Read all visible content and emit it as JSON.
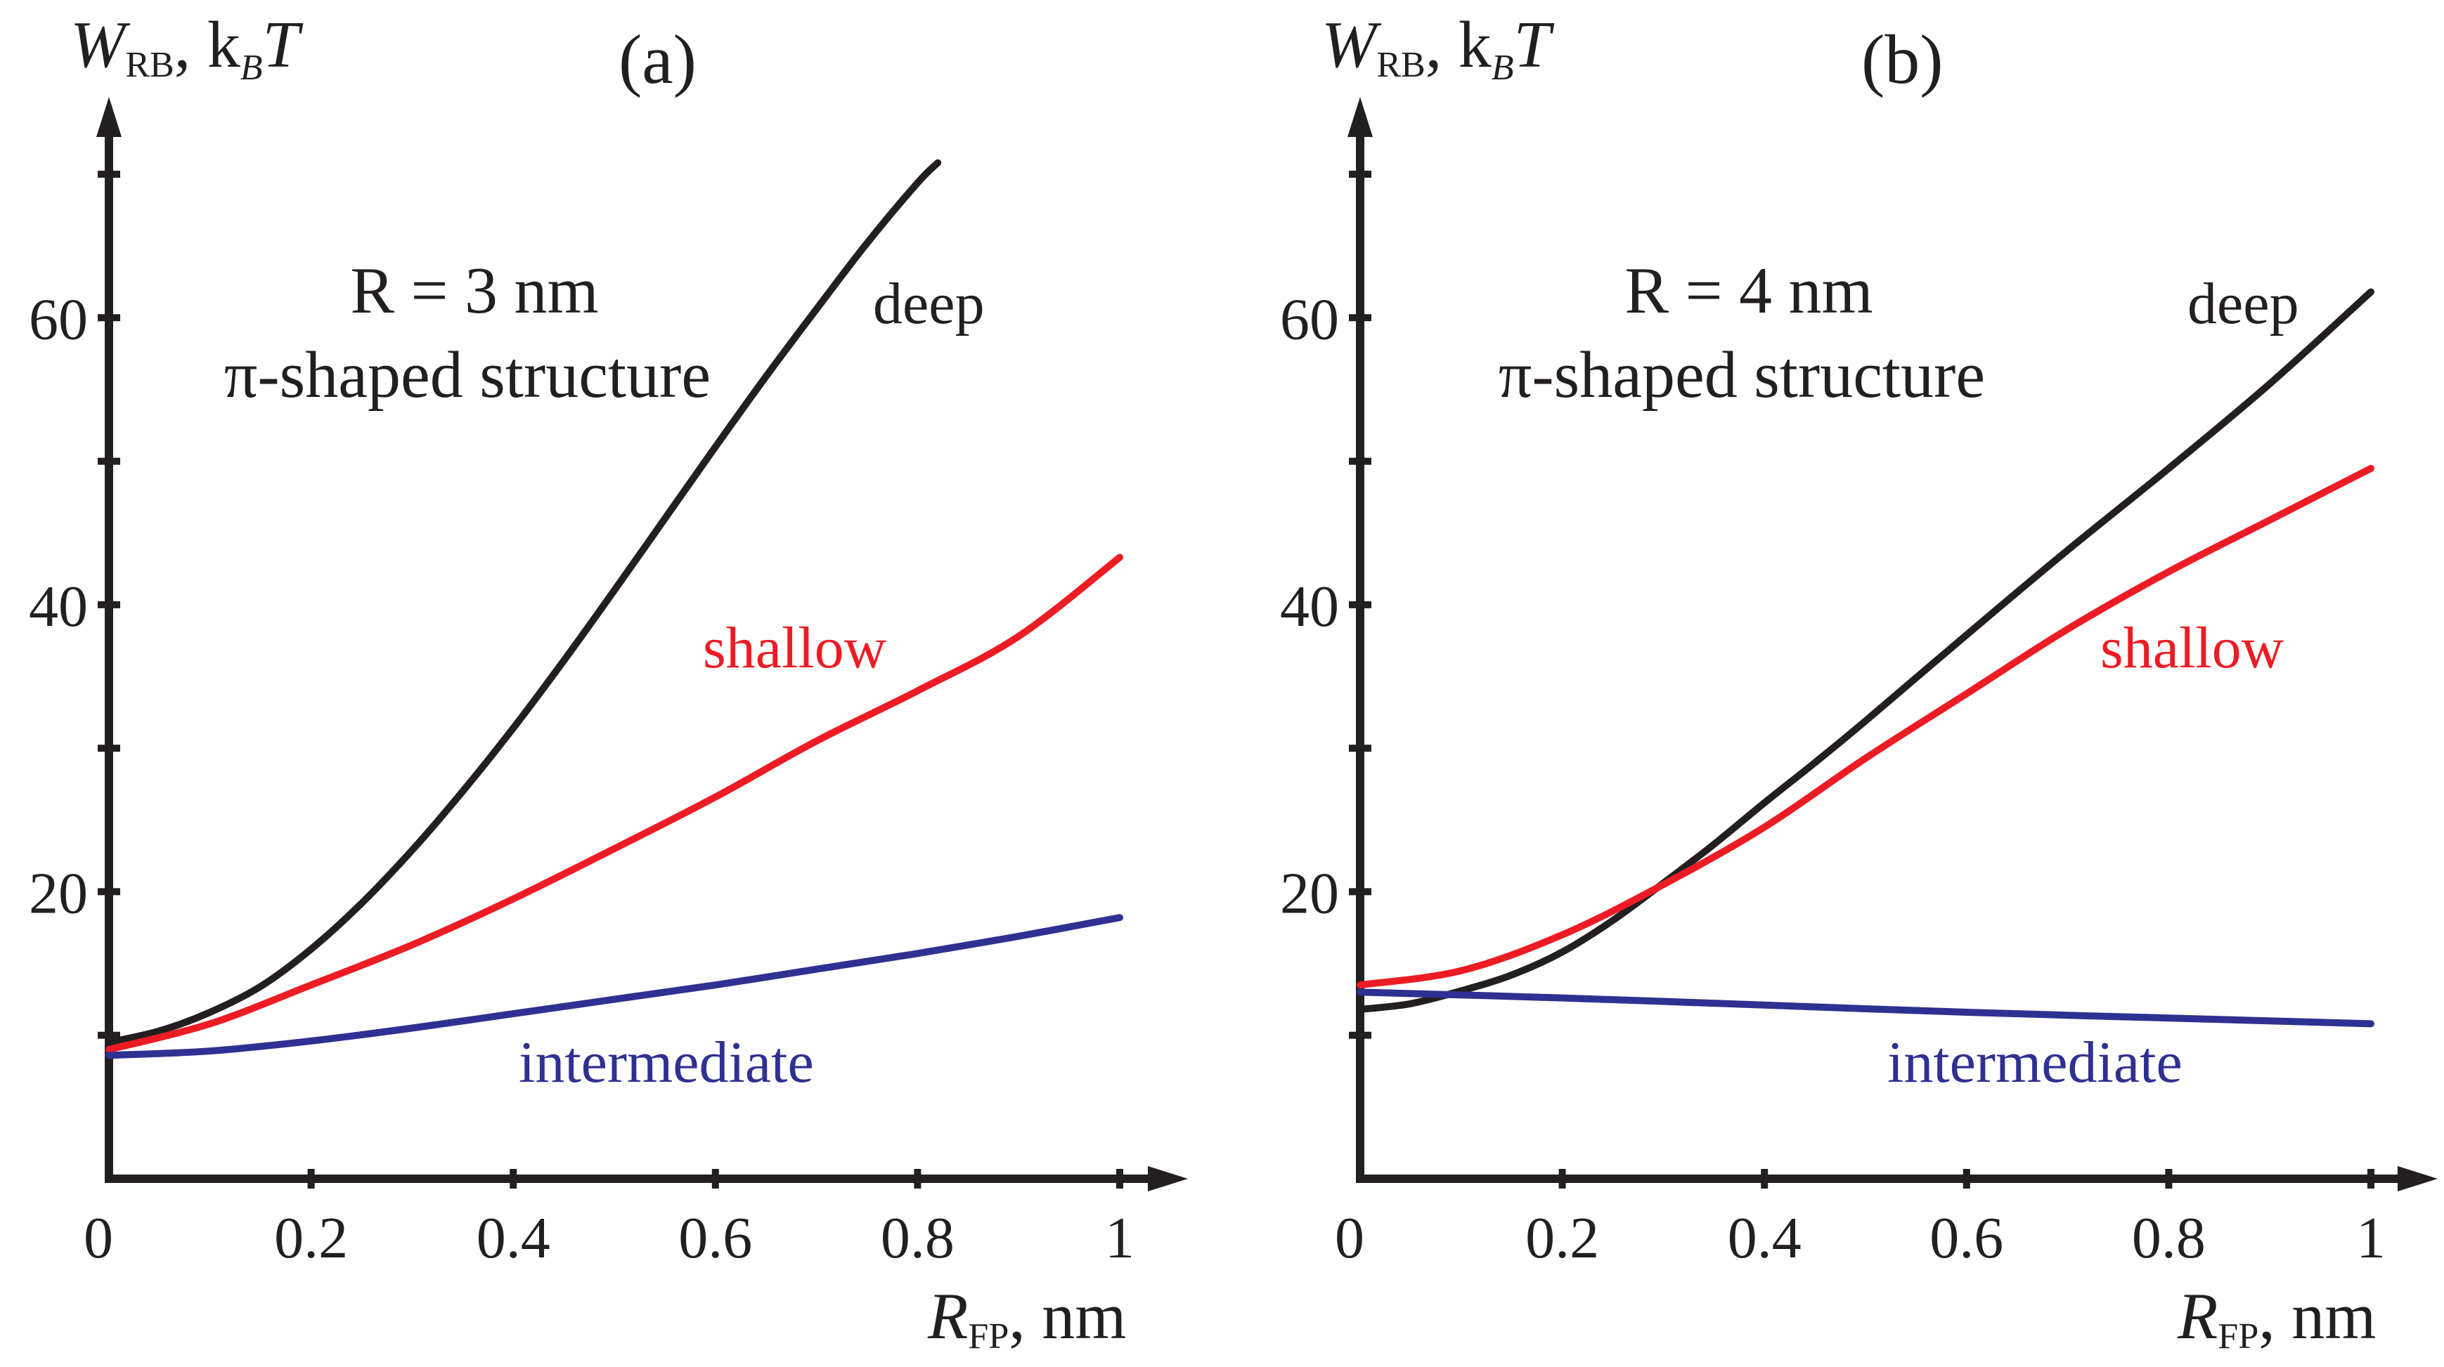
{
  "chart_data": [
    {
      "type": "line",
      "panel_label": "(a)",
      "ylabel": {
        "main": "W",
        "sub": "RB",
        "rest": ", k",
        "sub2": "B",
        "rest2": "T"
      },
      "xlabel": {
        "main": "R",
        "sub": "FP",
        "rest": ", nm"
      },
      "annotation": {
        "line1": "R = 3 nm",
        "line2": "π-shaped structure"
      },
      "xlim": [
        0,
        1.02
      ],
      "ylim": [
        0,
        72
      ],
      "x_ticks": [
        {
          "value": 0.2,
          "label": "0.2"
        },
        {
          "value": 0.4,
          "label": "0.4"
        },
        {
          "value": 0.6,
          "label": "0.6"
        },
        {
          "value": 0.8,
          "label": "0.8"
        },
        {
          "value": 1,
          "label": "1"
        }
      ],
      "origin_label": "0",
      "y_ticks": [
        {
          "value": 10,
          "label": ""
        },
        {
          "value": 20,
          "label": "20"
        },
        {
          "value": 30,
          "label": ""
        },
        {
          "value": 40,
          "label": "40"
        },
        {
          "value": 50,
          "label": ""
        },
        {
          "value": 60,
          "label": "60"
        },
        {
          "value": 70,
          "label": ""
        }
      ],
      "series": [
        {
          "name": "deep",
          "color": "#231f20",
          "x": [
            0,
            0.05,
            0.1,
            0.15,
            0.2,
            0.25,
            0.3,
            0.35,
            0.4,
            0.45,
            0.5,
            0.55,
            0.6,
            0.65,
            0.7,
            0.75,
            0.8,
            0.82
          ],
          "y": [
            9.5,
            10.3,
            11.6,
            13.4,
            16.0,
            19.2,
            22.9,
            27.0,
            31.4,
            36.1,
            41.0,
            46.0,
            51.0,
            55.9,
            60.6,
            65.2,
            69.4,
            70.8
          ]
        },
        {
          "name": "shallow",
          "color": "#ed1c24",
          "x": [
            0,
            0.1,
            0.2,
            0.3,
            0.4,
            0.5,
            0.6,
            0.7,
            0.8,
            0.9,
            1.0
          ],
          "y": [
            9.0,
            10.8,
            13.5,
            16.3,
            19.5,
            23.0,
            26.6,
            30.5,
            34.0,
            37.8,
            43.3
          ]
        },
        {
          "name": "intermediate",
          "color": "#2e3192",
          "x": [
            0,
            0.1,
            0.2,
            0.3,
            0.4,
            0.5,
            0.6,
            0.7,
            0.8,
            0.9,
            1.0
          ],
          "y": [
            8.6,
            8.9,
            9.6,
            10.5,
            11.5,
            12.5,
            13.5,
            14.6,
            15.7,
            16.9,
            18.2
          ]
        }
      ],
      "series_labels": [
        "deep",
        "shallow",
        "intermediate"
      ]
    },
    {
      "type": "line",
      "panel_label": "(b)",
      "ylabel": {
        "main": "W",
        "sub": "RB",
        "rest": ", k",
        "sub2": "B",
        "rest2": "T"
      },
      "xlabel": {
        "main": "R",
        "sub": "FP",
        "rest": ", nm"
      },
      "annotation": {
        "line1": "R = 4 nm",
        "line2": "π-shaped structure"
      },
      "xlim": [
        0,
        1.02
      ],
      "ylim": [
        0,
        72
      ],
      "x_ticks": [
        {
          "value": 0.2,
          "label": "0.2"
        },
        {
          "value": 0.4,
          "label": "0.4"
        },
        {
          "value": 0.6,
          "label": "0.6"
        },
        {
          "value": 0.8,
          "label": "0.8"
        },
        {
          "value": 1,
          "label": "1"
        }
      ],
      "origin_label": "0",
      "y_ticks": [
        {
          "value": 10,
          "label": ""
        },
        {
          "value": 20,
          "label": "20"
        },
        {
          "value": 30,
          "label": ""
        },
        {
          "value": 40,
          "label": "40"
        },
        {
          "value": 50,
          "label": ""
        },
        {
          "value": 60,
          "label": "60"
        },
        {
          "value": 70,
          "label": ""
        }
      ],
      "series": [
        {
          "name": "deep",
          "color": "#231f20",
          "x": [
            0,
            0.05,
            0.1,
            0.15,
            0.2,
            0.25,
            0.3,
            0.35,
            0.4,
            0.45,
            0.5,
            0.6,
            0.7,
            0.8,
            0.9,
            1.0
          ],
          "y": [
            11.8,
            12.2,
            13.1,
            14.2,
            15.8,
            18.0,
            20.6,
            23.3,
            26.2,
            29.0,
            31.9,
            37.9,
            43.8,
            49.5,
            55.4,
            61.8
          ]
        },
        {
          "name": "shallow",
          "color": "#ed1c24",
          "x": [
            0,
            0.1,
            0.2,
            0.3,
            0.4,
            0.5,
            0.6,
            0.7,
            0.8,
            0.9,
            1.0
          ],
          "y": [
            13.5,
            14.5,
            17.0,
            20.5,
            24.5,
            29.3,
            33.8,
            38.3,
            42.3,
            45.9,
            49.5
          ]
        },
        {
          "name": "intermediate",
          "color": "#2e3192",
          "x": [
            0,
            0.2,
            0.4,
            0.6,
            0.8,
            1.0
          ],
          "y": [
            13.0,
            12.6,
            12.1,
            11.6,
            11.2,
            10.8
          ]
        }
      ],
      "series_labels": [
        "deep",
        "shallow",
        "intermediate"
      ]
    }
  ]
}
